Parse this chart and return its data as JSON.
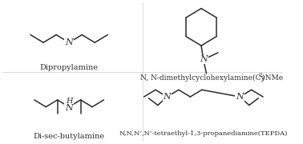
{
  "bg_color": "#ffffff",
  "line_color": "#2b2b2b",
  "label_color": "#2b2b2b",
  "labels": {
    "dipropylamine": "Dipropylamine",
    "disecbutylamine": "Di-sec-butylamine",
    "cynme2_main": "N, N-dimethylcyclohexylamine(CyNMe",
    "cynme2_sub": "2",
    "cynme2_end": ")",
    "tepda": "N,N,N’,N’-tetraethyl-1,3-propanediamine(TEPDA)"
  },
  "font_size": 7.0,
  "line_width": 1.1
}
